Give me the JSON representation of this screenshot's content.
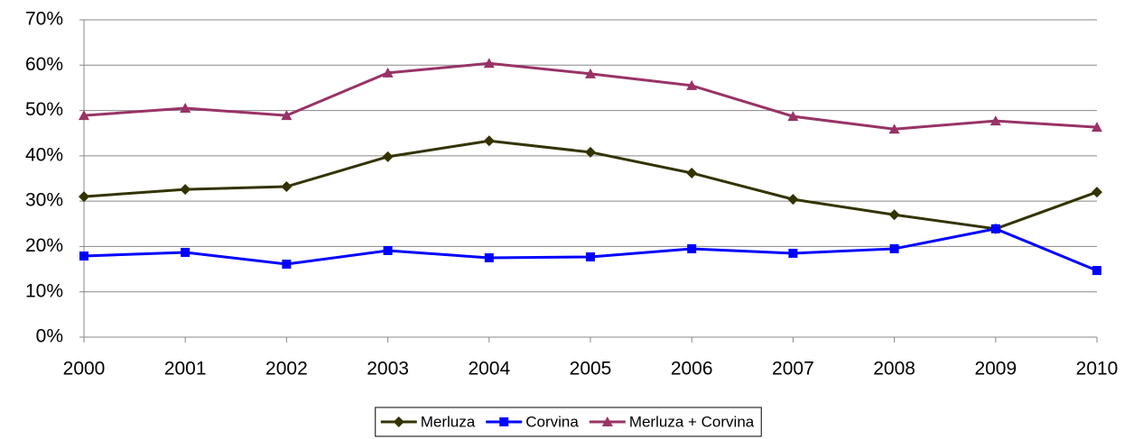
{
  "chart_data": {
    "type": "line",
    "categories": [
      "2000",
      "2001",
      "2002",
      "2003",
      "2004",
      "2005",
      "2006",
      "2007",
      "2008",
      "2009",
      "2010"
    ],
    "series": [
      {
        "name": "Merluza",
        "color": "#333300",
        "marker": "diamond",
        "values": [
          31.0,
          32.6,
          33.2,
          39.8,
          43.3,
          40.8,
          36.2,
          30.4,
          27.0,
          23.9,
          32.0
        ]
      },
      {
        "name": "Corvina",
        "color": "#0000ff",
        "marker": "square",
        "values": [
          17.9,
          18.7,
          16.1,
          19.1,
          17.5,
          17.7,
          19.5,
          18.5,
          19.5,
          23.9,
          14.7
        ]
      },
      {
        "name": "Merluza + Corvina",
        "color": "#993366",
        "marker": "triangle",
        "values": [
          48.9,
          50.5,
          48.9,
          58.3,
          60.4,
          58.1,
          55.5,
          48.7,
          45.9,
          47.7,
          46.3
        ]
      }
    ],
    "ylim": [
      0,
      70
    ],
    "yticks": [
      {
        "value": 0,
        "label": "0%"
      },
      {
        "value": 10,
        "label": "10%"
      },
      {
        "value": 20,
        "label": "20%"
      },
      {
        "value": 30,
        "label": "30%"
      },
      {
        "value": 40,
        "label": "40%"
      },
      {
        "value": 50,
        "label": "50%"
      },
      {
        "value": 60,
        "label": "60%"
      },
      {
        "value": 70,
        "label": "70%"
      }
    ],
    "grid": true,
    "legend": "bottom"
  }
}
